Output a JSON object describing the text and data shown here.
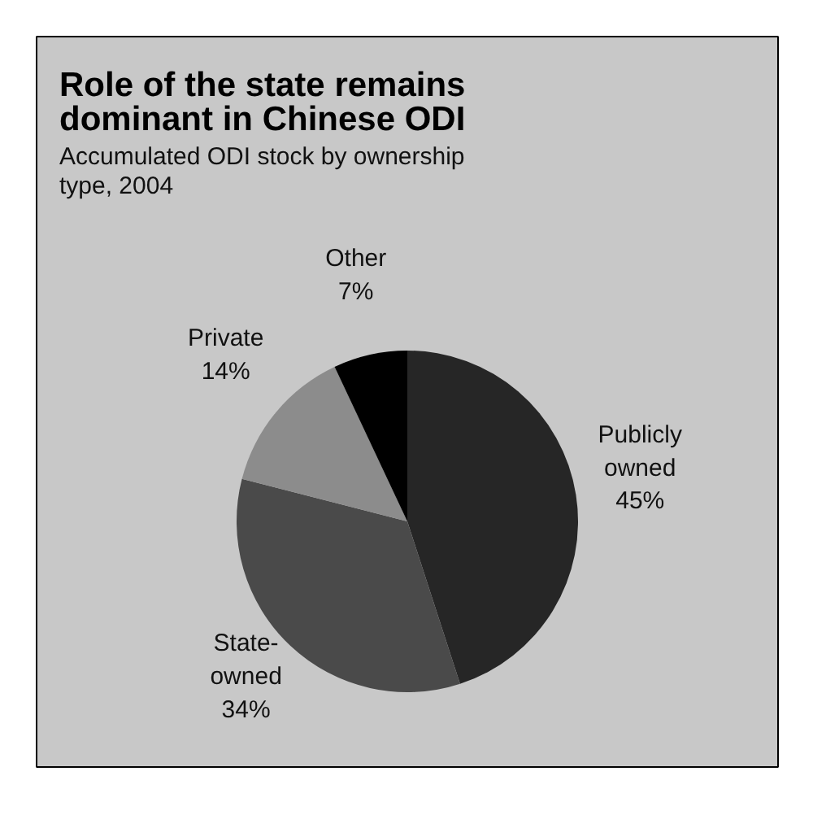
{
  "chart_data": {
    "type": "pie",
    "title": "Role of the state remains dominant in Chinese ODI",
    "subtitle": "Accumulated ODI stock by ownership type, 2004",
    "categories": [
      "Publicly owned",
      "State-owned",
      "Private",
      "Other"
    ],
    "values": [
      45,
      34,
      14,
      7
    ],
    "value_labels": [
      "45%",
      "34%",
      "14%",
      "7%"
    ],
    "colors": [
      "#262626",
      "#4a4a4a",
      "#8c8c8c",
      "#000000"
    ]
  }
}
